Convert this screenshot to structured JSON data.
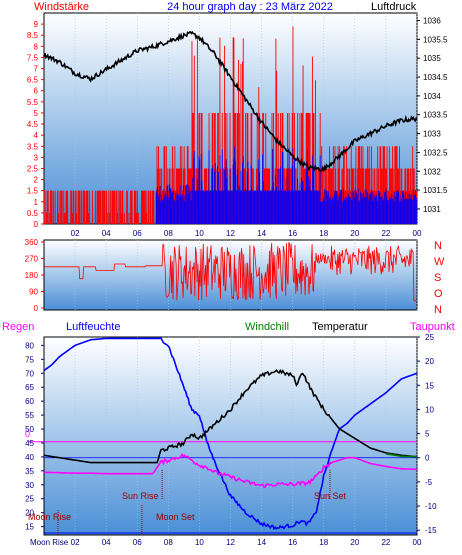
{
  "header": {
    "wind_title": "Windstärke",
    "graph_title": "24 hour graph day : 23 März 2022",
    "pressure_title": "Luftdruck"
  },
  "legend2": {
    "regen": "Regen",
    "luftfeuchte": "Luftfeuchte",
    "windchill": "Windchill",
    "temperatur": "Temperatur",
    "taupunkt": "Taupunkt"
  },
  "annotations": {
    "sun_rise": "Sun Rise",
    "sun_set": "Sun Set",
    "moon_rise": "Moon Rise",
    "moon_set": "Moon Set",
    "moon_rise_axis": "Moon Rise"
  },
  "hour_labels": [
    "02",
    "04",
    "06",
    "08",
    "10",
    "12",
    "14",
    "16",
    "18",
    "20",
    "22",
    "00"
  ],
  "chart_data": [
    {
      "type": "bar",
      "panel": "wind",
      "title": "24 hour graph day : 23 März 2022",
      "ylabel": "Windstärke",
      "y2label": "Luftdruck",
      "ylim": [
        0,
        9.5
      ],
      "y2lim": [
        1030.6,
        1036.2
      ],
      "yticks": [
        "0",
        "0.5",
        "1",
        "1.5",
        "2",
        "2.5",
        "3",
        "3.5",
        "4",
        "4.5",
        "5",
        "5.5",
        "6",
        "6.5",
        "7",
        "7.5",
        "8",
        "8.5",
        "9"
      ],
      "y2ticks": [
        "1031",
        "1031.5",
        "1032",
        "1032.5",
        "1033",
        "1033.5",
        "1034",
        "1034.5",
        "1035",
        "1035.5",
        "1036"
      ],
      "pressure": {
        "name": "Luftdruck",
        "color": "#000000",
        "x": [
          0,
          1,
          2,
          3,
          4,
          5,
          6,
          7,
          8,
          9,
          9.5,
          10,
          11,
          12,
          13,
          14,
          15,
          16,
          17,
          18,
          19,
          20,
          21,
          22,
          23,
          24
        ],
        "values": [
          1035.1,
          1034.9,
          1034.6,
          1034.45,
          1034.7,
          1034.95,
          1035.2,
          1035.3,
          1035.45,
          1035.6,
          1035.65,
          1035.55,
          1035.1,
          1034.5,
          1033.9,
          1033.3,
          1032.8,
          1032.4,
          1032.1,
          1032.05,
          1032.4,
          1032.8,
          1033,
          1033.2,
          1033.35,
          1033.4
        ]
      },
      "gust_color": "#ff0000",
      "mean_color": "#0000ff"
    },
    {
      "type": "line",
      "panel": "wind_direction",
      "yticks": [
        "0",
        "90",
        "180",
        "270",
        "360"
      ],
      "y2labels": [
        "N",
        "W",
        "S",
        "O",
        "N"
      ],
      "ylim": [
        0,
        360
      ],
      "color": "#ff0000"
    },
    {
      "type": "line",
      "panel": "climate",
      "yticks_left": [
        "15",
        "20",
        "25",
        "30",
        "35",
        "40",
        "45",
        "50",
        "55",
        "60",
        "65",
        "70",
        "75",
        "80"
      ],
      "ylim_left": [
        12,
        83
      ],
      "yticks_right": [
        "-15",
        "-10",
        "-5",
        "0",
        "5",
        "10",
        "15",
        "20",
        "25"
      ],
      "ylim_right": [
        -16,
        25
      ],
      "reference_line": {
        "value": 0,
        "label": "0",
        "color": "#ff00ff"
      },
      "series": [
        {
          "name": "Luftfeuchte",
          "color": "#0000ff",
          "x": [
            0,
            0.5,
            1,
            2,
            3,
            4,
            5,
            6,
            7,
            7.5,
            8,
            9,
            9.5,
            10,
            10.5,
            11,
            12,
            13,
            14,
            15,
            16,
            16.5,
            17,
            17.5,
            18,
            18.5,
            19,
            19.5,
            20,
            21,
            22,
            23,
            24
          ],
          "values": [
            71,
            73,
            76,
            80,
            82,
            82.5,
            82.5,
            82.5,
            82.5,
            82.5,
            80,
            65,
            57,
            55,
            45,
            38,
            26,
            20,
            16,
            14.5,
            15.5,
            17,
            16,
            20,
            33,
            42,
            50,
            52,
            55,
            59,
            63,
            68,
            70
          ]
        },
        {
          "name": "Temperatur",
          "color": "#000000",
          "x": [
            0,
            1,
            2,
            3,
            4,
            5,
            6,
            7,
            7.3,
            7.5,
            8,
            9,
            9.5,
            10,
            10.5,
            11,
            12,
            13,
            14,
            15,
            15.5,
            16,
            16.3,
            16.6,
            16.9,
            17.2,
            17.6,
            18,
            18.5,
            19,
            20,
            21,
            22,
            23,
            24
          ],
          "values": [
            0.5,
            0,
            -0.5,
            -1,
            -1,
            -1,
            -1,
            -1,
            -1,
            1.5,
            2,
            3,
            5,
            4,
            5.5,
            7,
            10,
            14,
            17,
            18,
            17.5,
            17,
            15,
            18,
            16,
            14,
            12,
            10,
            8,
            6,
            4,
            2,
            1,
            0.5,
            0.2
          ]
        },
        {
          "name": "Windchill",
          "color": "#008000",
          "x": [
            22,
            23,
            24
          ],
          "values": [
            0.8,
            0.3,
            0.2
          ]
        },
        {
          "name": "Taupunkt",
          "color": "#ff00ff",
          "x": [
            0,
            1,
            2,
            3,
            4,
            5,
            6,
            7,
            7.5,
            8,
            9,
            9.5,
            10,
            10.5,
            11,
            12,
            13,
            14,
            15,
            16,
            17,
            17.5,
            18,
            18.5,
            19,
            19.5,
            20,
            21,
            22,
            23,
            24
          ],
          "values": [
            -3,
            -3.1,
            -3.2,
            -3.2,
            -3.3,
            -3.3,
            -3.3,
            -3.3,
            -1,
            -0.5,
            0.5,
            -0.5,
            -1.5,
            -2,
            -3,
            -4,
            -5,
            -5.8,
            -5.5,
            -5.5,
            -5.2,
            -4,
            -2,
            -1,
            -0.5,
            0,
            0,
            -1.2,
            -1.8,
            -2.3,
            -2.4
          ]
        }
      ],
      "rain_color": "#0000ff"
    }
  ],
  "colors": {
    "panel_top": "#ffffff",
    "panel_bottom": "#4a8fd6",
    "axis_wind": "#ff0000",
    "axis_climate": "#000080",
    "frame": "#000000",
    "sun_marker": "#a00000"
  }
}
